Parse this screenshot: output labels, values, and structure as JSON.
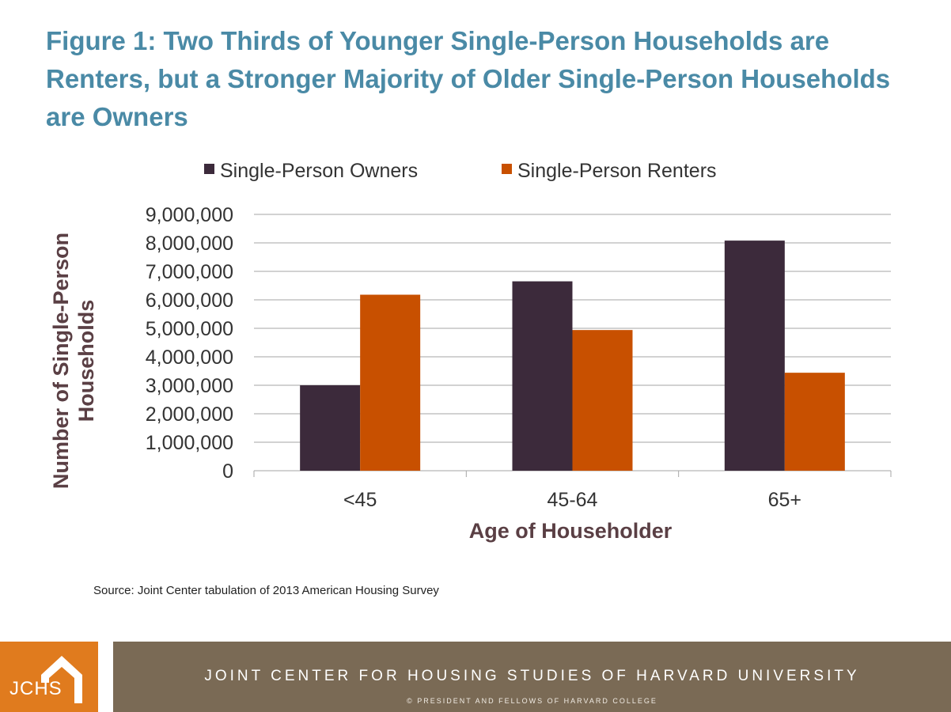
{
  "title": "Figure 1: Two Thirds of Younger Single-Person Households are Renters, but a Stronger Majority of Older Single-Person Households are Owners",
  "source": "Source: Joint Center tabulation of 2013 American Housing Survey",
  "footer": {
    "logo_text": "JCHS",
    "logo_icon": "house-icon",
    "org_name": "JOINT CENTER FOR HOUSING STUDIES OF HARVARD UNIVERSITY",
    "copyright": "© PRESIDENT AND FELLOWS OF HARVARD COLLEGE",
    "logo_color": "#e07b1e",
    "band_color": "#7a6a55"
  },
  "chart_data": {
    "type": "bar",
    "xlabel": "Age of Householder",
    "ylabel": "Number of Single-Person Households",
    "categories": [
      "<45",
      "45-64",
      "65+"
    ],
    "series": [
      {
        "name": "Single-Person Owners",
        "color": "#3c2a3b",
        "values": [
          3000000,
          6650000,
          8080000
        ]
      },
      {
        "name": "Single-Person Renters",
        "color": "#c85000",
        "values": [
          6180000,
          4940000,
          3440000
        ]
      }
    ],
    "ylim": [
      0,
      9000000
    ],
    "yticks": [
      "0",
      "1,000,000",
      "2,000,000",
      "3,000,000",
      "4,000,000",
      "5,000,000",
      "6,000,000",
      "7,000,000",
      "8,000,000",
      "9,000,000"
    ],
    "grid": true,
    "legend_position": "top"
  }
}
